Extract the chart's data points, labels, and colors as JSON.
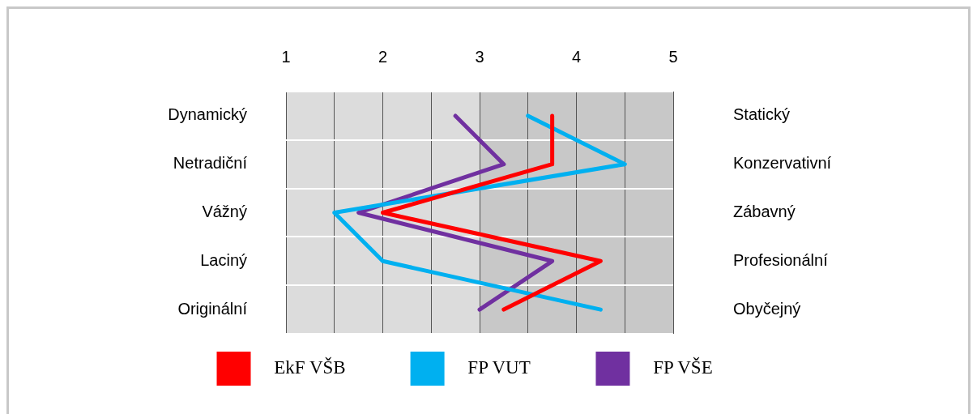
{
  "chart_data": {
    "type": "line",
    "orientation": "horizontal",
    "categories": [
      "Dynamický",
      "Netradiční",
      "Vážný",
      "Laciný",
      "Originální"
    ],
    "y2_categories": [
      "Statický",
      "Konzervativní",
      "Zábavný",
      "Profesionální",
      "Obyčejný"
    ],
    "xlim": [
      1,
      5
    ],
    "xticks": [
      1,
      {
        "value": 1.5,
        "label": null
      },
      2,
      {
        "value": 2.5,
        "label": null
      },
      3,
      {
        "value": 3.5,
        "label": null
      },
      4,
      {
        "value": 4.5,
        "label": null
      },
      5
    ],
    "series": [
      {
        "name": "EkF VŠB",
        "color": "#ff0000",
        "values": [
          3.75,
          3.75,
          2,
          4.25,
          3.25
        ]
      },
      {
        "name": "FP VUT",
        "color": "#00b0f0",
        "values": [
          3.5,
          4.5,
          1.5,
          2,
          4.25
        ]
      },
      {
        "name": "FP VŠE",
        "color": "#7030a0",
        "values": [
          2.75,
          3.25,
          1.75,
          3.75,
          3
        ]
      }
    ],
    "bands": [
      {
        "axis": "x",
        "from": 1,
        "to": 3,
        "color": "#dcdcdc"
      },
      {
        "axis": "x",
        "from": 3,
        "to": 5,
        "color": "#c8c8c8"
      }
    ],
    "grid": true,
    "legend": "bottom",
    "marker": "none"
  }
}
